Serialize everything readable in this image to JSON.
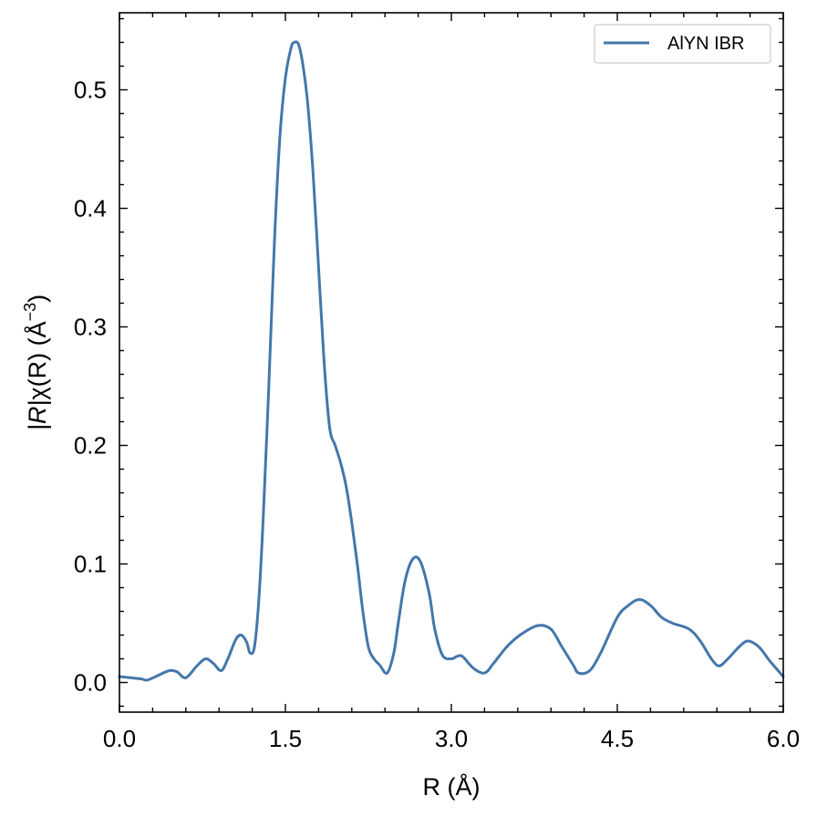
{
  "chart_data": {
    "type": "line",
    "xlabel": "R (Å)",
    "ylabel_parts": {
      "bars": "|R|",
      "chi": "χ(R) (Å",
      "exp": "−3",
      "close": ")"
    },
    "xlim": [
      0.0,
      6.0
    ],
    "ylim": [
      -0.025,
      0.565
    ],
    "x_ticks": [
      {
        "value": 0.0,
        "label": "0.0"
      },
      {
        "value": 1.5,
        "label": "1.5"
      },
      {
        "value": 3.0,
        "label": "3.0"
      },
      {
        "value": 4.5,
        "label": "4.5"
      },
      {
        "value": 6.0,
        "label": "6.0"
      }
    ],
    "y_ticks": [
      {
        "value": 0.0,
        "label": "0.0"
      },
      {
        "value": 0.1,
        "label": "0.1"
      },
      {
        "value": 0.2,
        "label": "0.2"
      },
      {
        "value": 0.3,
        "label": "0.3"
      },
      {
        "value": 0.4,
        "label": "0.4"
      },
      {
        "value": 0.5,
        "label": "0.5"
      }
    ],
    "x_minor_step": 0.3,
    "y_minor_step": 0.02,
    "grid": false,
    "legend_position": "top-right",
    "series": [
      {
        "name": "AlYN IBR",
        "color": "#4477aa",
        "x": [
          0.0,
          0.1,
          0.2,
          0.25,
          0.35,
          0.45,
          0.52,
          0.6,
          0.7,
          0.78,
          0.85,
          0.92,
          0.98,
          1.05,
          1.1,
          1.15,
          1.18,
          1.22,
          1.26,
          1.3,
          1.35,
          1.4,
          1.45,
          1.5,
          1.55,
          1.58,
          1.62,
          1.66,
          1.7,
          1.75,
          1.8,
          1.85,
          1.9,
          1.95,
          2.0,
          2.05,
          2.1,
          2.15,
          2.2,
          2.25,
          2.3,
          2.35,
          2.42,
          2.48,
          2.52,
          2.58,
          2.65,
          2.72,
          2.8,
          2.85,
          2.92,
          3.0,
          3.05,
          3.1,
          3.2,
          3.3,
          3.38,
          3.5,
          3.62,
          3.78,
          3.9,
          4.0,
          4.1,
          4.15,
          4.25,
          4.35,
          4.5,
          4.6,
          4.7,
          4.8,
          4.9,
          5.0,
          5.15,
          5.25,
          5.35,
          5.42,
          5.5,
          5.6,
          5.68,
          5.78,
          5.88,
          6.0
        ],
        "y": [
          0.005,
          0.004,
          0.003,
          0.002,
          0.006,
          0.01,
          0.009,
          0.004,
          0.014,
          0.02,
          0.016,
          0.01,
          0.02,
          0.036,
          0.04,
          0.034,
          0.025,
          0.03,
          0.07,
          0.14,
          0.25,
          0.37,
          0.46,
          0.51,
          0.535,
          0.54,
          0.538,
          0.52,
          0.49,
          0.43,
          0.35,
          0.27,
          0.215,
          0.2,
          0.185,
          0.165,
          0.135,
          0.1,
          0.06,
          0.03,
          0.02,
          0.015,
          0.008,
          0.025,
          0.05,
          0.085,
          0.104,
          0.102,
          0.075,
          0.045,
          0.023,
          0.02,
          0.022,
          0.022,
          0.012,
          0.008,
          0.016,
          0.03,
          0.04,
          0.048,
          0.045,
          0.03,
          0.015,
          0.008,
          0.01,
          0.025,
          0.055,
          0.065,
          0.07,
          0.065,
          0.055,
          0.05,
          0.045,
          0.035,
          0.02,
          0.014,
          0.02,
          0.03,
          0.035,
          0.03,
          0.018,
          0.005
        ]
      }
    ]
  }
}
